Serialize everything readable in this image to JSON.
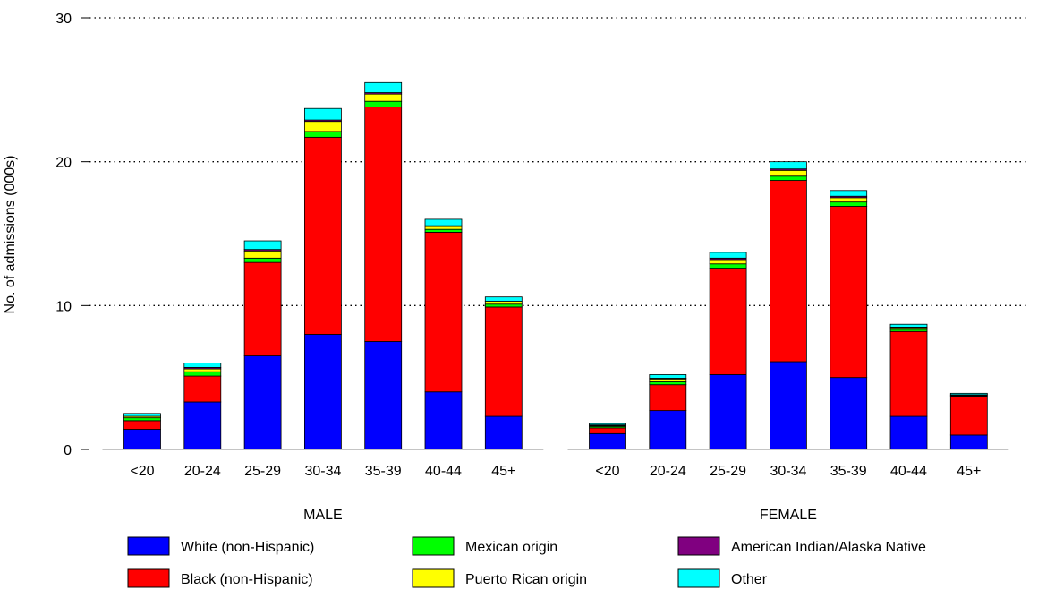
{
  "chart_data": {
    "type": "bar",
    "stacked": true,
    "title": "",
    "ylabel": "No. of admissions (000s)",
    "ylim": [
      0,
      30
    ],
    "yticks": [
      "0",
      "10",
      "20",
      "30"
    ],
    "grid": "horizontal dotted at 10, 20, 30",
    "legend_position": "bottom",
    "groups": [
      {
        "name": "MALE",
        "categories": [
          "<20",
          "20-24",
          "25-29",
          "30-34",
          "35-39",
          "40-44",
          "45+"
        ],
        "series": [
          {
            "name": "White (non-Hispanic)",
            "values": [
              1.4,
              3.3,
              6.5,
              8.0,
              7.5,
              4.0,
              2.3
            ]
          },
          {
            "name": "Black (non-Hispanic)",
            "values": [
              0.6,
              1.8,
              6.5,
              13.7,
              16.3,
              11.1,
              7.6
            ]
          },
          {
            "name": "Mexican origin",
            "values": [
              0.2,
              0.3,
              0.3,
              0.4,
              0.4,
              0.2,
              0.2
            ]
          },
          {
            "name": "Puerto Rican origin",
            "values": [
              0.1,
              0.2,
              0.5,
              0.7,
              0.5,
              0.2,
              0.2
            ]
          },
          {
            "name": "American Indian/Alaska Native",
            "values": [
              0.0,
              0.1,
              0.1,
              0.1,
              0.1,
              0.05,
              0.0
            ]
          },
          {
            "name": "Other",
            "values": [
              0.2,
              0.3,
              0.6,
              0.8,
              0.7,
              0.45,
              0.3
            ]
          }
        ]
      },
      {
        "name": "FEMALE",
        "categories": [
          "<20",
          "20-24",
          "25-29",
          "30-34",
          "35-39",
          "40-44",
          "45+"
        ],
        "series": [
          {
            "name": "White (non-Hispanic)",
            "values": [
              1.1,
              2.7,
              5.2,
              6.1,
              5.0,
              2.3,
              1.0
            ]
          },
          {
            "name": "Black (non-Hispanic)",
            "values": [
              0.4,
              1.8,
              7.4,
              12.6,
              11.9,
              5.9,
              2.7
            ]
          },
          {
            "name": "Mexican origin",
            "values": [
              0.1,
              0.2,
              0.3,
              0.3,
              0.3,
              0.15,
              0.05
            ]
          },
          {
            "name": "Puerto Rican origin",
            "values": [
              0.05,
              0.2,
              0.3,
              0.4,
              0.3,
              0.1,
              0.05
            ]
          },
          {
            "name": "American Indian/Alaska Native",
            "values": [
              0.05,
              0.05,
              0.1,
              0.1,
              0.1,
              0.05,
              0.0
            ]
          },
          {
            "name": "Other",
            "values": [
              0.1,
              0.25,
              0.4,
              0.5,
              0.4,
              0.2,
              0.1
            ]
          }
        ]
      }
    ],
    "colors": {
      "White (non-Hispanic)": "#0000ff",
      "Black (non-Hispanic)": "#ff0000",
      "Mexican origin": "#00ff00",
      "Puerto Rican origin": "#ffff00",
      "American Indian/Alaska Native": "#800080",
      "Other": "#00ffff"
    },
    "legend": [
      "White (non-Hispanic)",
      "Black (non-Hispanic)",
      "Mexican origin",
      "Puerto Rican origin",
      "American Indian/Alaska Native",
      "Other"
    ]
  }
}
